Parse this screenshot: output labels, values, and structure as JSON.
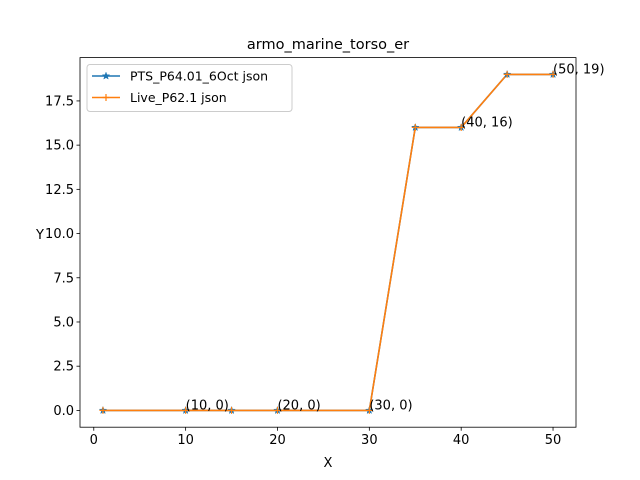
{
  "chart_data": {
    "type": "line",
    "title": "armo_marine_torso_er",
    "xlabel": "X",
    "ylabel": "Y",
    "xlim": [
      -1.5,
      52.5
    ],
    "ylim": [
      -0.95,
      19.95
    ],
    "xticks": [
      0,
      10,
      20,
      30,
      40,
      50
    ],
    "yticks": [
      0.0,
      2.5,
      5.0,
      7.5,
      10.0,
      12.5,
      15.0,
      17.5
    ],
    "ytick_labels": [
      "0.0",
      "2.5",
      "5.0",
      "7.5",
      "10.0",
      "12.5",
      "15.0",
      "17.5"
    ],
    "grid": false,
    "legend_position": "upper left",
    "series": [
      {
        "name": "PTS_P64.01_6Oct json",
        "color": "#1f77b4",
        "marker": "star",
        "x": [
          1,
          10,
          15,
          20,
          30,
          35,
          40,
          45,
          50
        ],
        "y": [
          0,
          0,
          0,
          0,
          0,
          16,
          16,
          19,
          19
        ]
      },
      {
        "name": "Live_P62.1 json",
        "color": "#ff7f0e",
        "marker": "plus",
        "x": [
          1,
          10,
          15,
          20,
          30,
          35,
          40,
          45,
          50
        ],
        "y": [
          0,
          0,
          0,
          0,
          0,
          16,
          16,
          19,
          19
        ]
      }
    ],
    "annotations": [
      {
        "text": "(10, 0)",
        "x": 10,
        "y": 0
      },
      {
        "text": "(20, 0)",
        "x": 20,
        "y": 0
      },
      {
        "text": "(30, 0)",
        "x": 30,
        "y": 0
      },
      {
        "text": "(40, 16)",
        "x": 40,
        "y": 16
      },
      {
        "text": "(50, 19)",
        "x": 50,
        "y": 19
      }
    ]
  }
}
